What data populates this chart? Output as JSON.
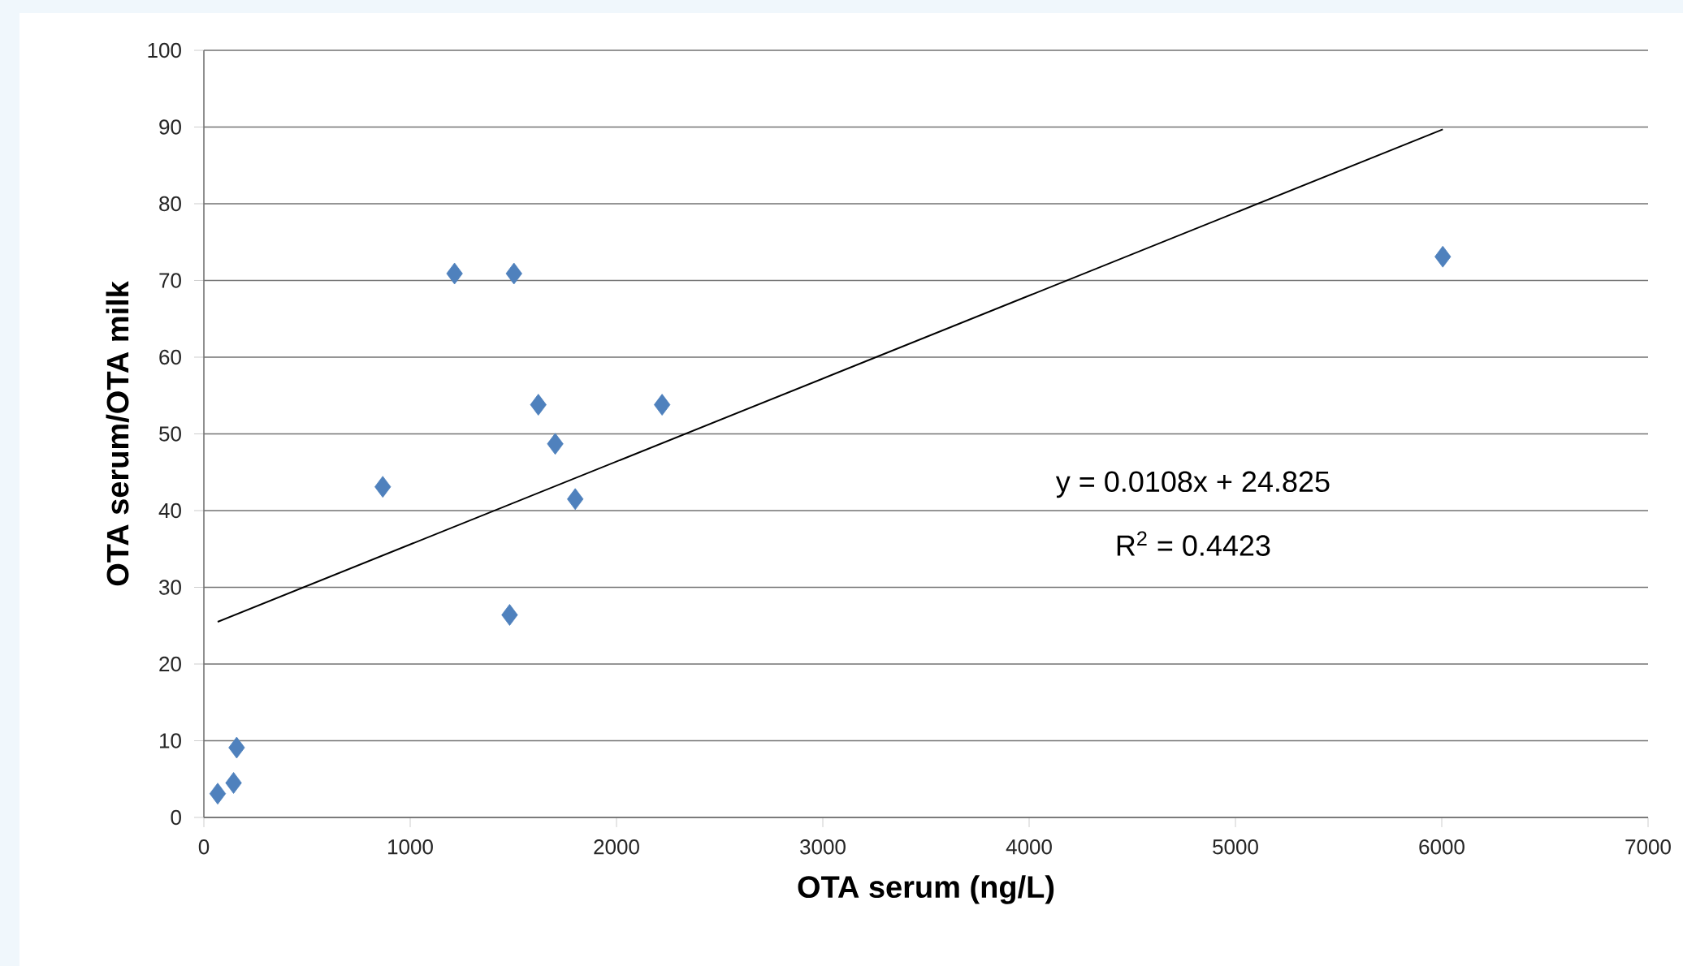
{
  "chart_data": {
    "type": "scatter",
    "xlabel": "OTA serum (ng/L)",
    "ylabel": "OTA serum/OTA milk",
    "xlim": [
      0,
      7000
    ],
    "xticks": [
      0,
      1000,
      2000,
      3000,
      4000,
      5000,
      6000,
      7000
    ],
    "ylim": [
      0,
      100
    ],
    "yticks": [
      0,
      10,
      20,
      30,
      40,
      50,
      60,
      70,
      80,
      90,
      100
    ],
    "grid": "y",
    "marker": "diamond",
    "series": [
      {
        "color": "#4f81bd",
        "x": [
          67,
          144,
          159,
          867,
          1215,
          1503,
          1482,
          1621,
          1703,
          1800,
          2221,
          6005
        ],
        "values": [
          3.1,
          4.5,
          9.1,
          43.1,
          70.9,
          70.9,
          26.4,
          53.8,
          48.7,
          41.5,
          53.8,
          73.1
        ]
      },
      {
        "type": "line",
        "color": "#000000",
        "marker": "none",
        "line_style": "solid",
        "x": [
          67,
          6005
        ],
        "values": [
          25.5,
          89.7
        ]
      }
    ],
    "annotations": [
      "y = 0.0108x + 24.825",
      "R$^{2}$ = 0.4423"
    ]
  }
}
